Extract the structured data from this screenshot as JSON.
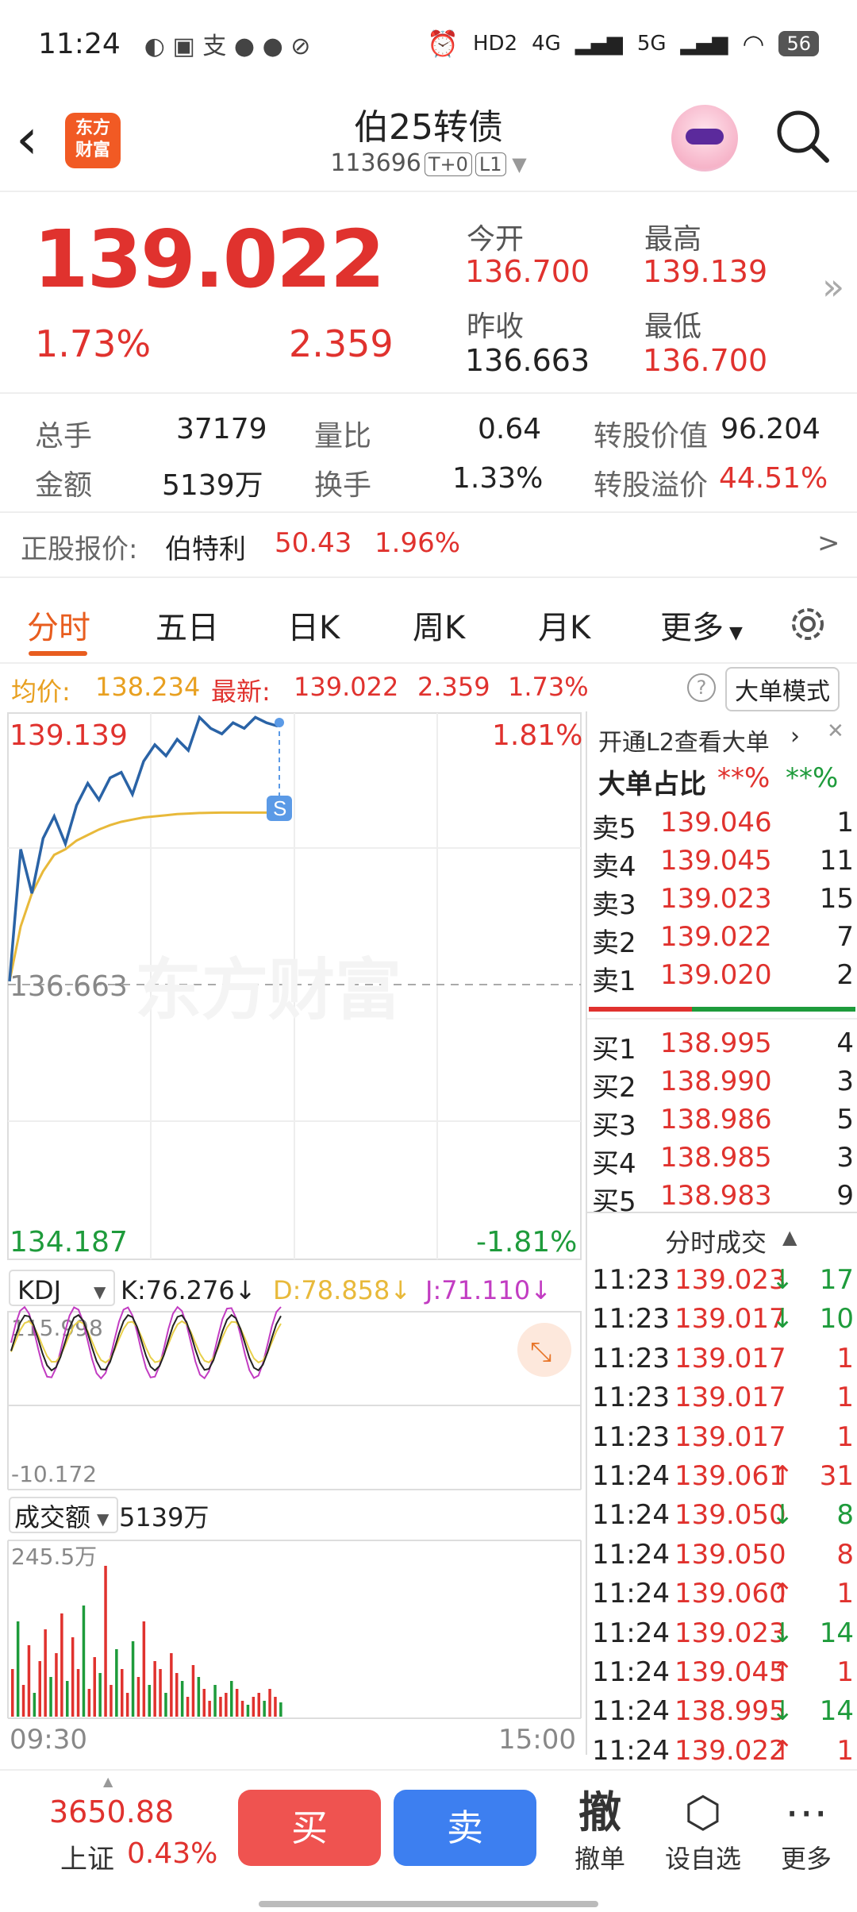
{
  "status": {
    "time": "11:24",
    "net1": "HD2",
    "net2": "4G",
    "net3": "5G",
    "battery": "56"
  },
  "header": {
    "logo_line1": "东方",
    "logo_line2": "财富",
    "title": "伯25转债",
    "code": "113696",
    "tag1": "T+0",
    "tag2": "L1"
  },
  "quote": {
    "price": "139.022",
    "pct": "1.73%",
    "change": "2.359",
    "open_label": "今开",
    "open": "136.700",
    "high_label": "最高",
    "high": "139.139",
    "prev_label": "昨收",
    "prev": "136.663",
    "low_label": "最低",
    "low": "136.700"
  },
  "stats": {
    "vol_label": "总手",
    "vol": "37179",
    "ratio_label": "量比",
    "ratio": "0.64",
    "conv_label": "转股价值",
    "conv": "96.204",
    "amt_label": "金额",
    "amt": "5139万",
    "turn_label": "换手",
    "turn": "1.33%",
    "prem_label": "转股溢价",
    "prem": "44.51%"
  },
  "stockref": {
    "label": "正股报价:",
    "name": "伯特利",
    "price": "50.43",
    "pct": "1.96%",
    "arrow": ">"
  },
  "tabs": [
    "分时",
    "五日",
    "日K",
    "周K",
    "月K",
    "更多"
  ],
  "avg": {
    "avg_label": "均价:",
    "avg": "138.234",
    "last_label": "最新:",
    "last": "139.022",
    "chg": "2.359",
    "pct": "1.73%",
    "mode": "大单模式"
  },
  "chart": {
    "top_price": "139.139",
    "top_pct": "1.81%",
    "mid_price": "136.663",
    "bot_price": "134.187",
    "bot_pct": "-1.81%",
    "watermark": "东方财富",
    "s_marker": "S",
    "kdj_label": "KDJ",
    "k": "K:76.276",
    "d": "D:78.858",
    "j": "J:71.110",
    "kdj_top": "115.998",
    "kdj_bot": "-10.172",
    "vol_label": "成交额",
    "vol_val": "5139万",
    "vol_top": "245.5万",
    "time_start": "09:30",
    "time_end": "15:00"
  },
  "chart_data": {
    "type": "line",
    "title": "",
    "ylim": [
      134.187,
      139.139
    ],
    "prev_close": 136.663,
    "series": [
      {
        "values": [
          136.7,
          137.9,
          137.5,
          138.0,
          138.2,
          137.95,
          138.3,
          138.5,
          138.35,
          138.55,
          138.6,
          138.4,
          138.7,
          138.85,
          138.75,
          138.9,
          138.8,
          139.1,
          139.0,
          138.95,
          139.05,
          139.0,
          139.1,
          139.05,
          139.02
        ]
      },
      {
        "values": [
          136.7,
          137.2,
          137.5,
          137.7,
          137.85,
          137.9,
          137.98,
          138.03,
          138.08,
          138.12,
          138.15,
          138.17,
          138.19,
          138.2,
          138.21,
          138.22,
          138.225,
          138.23,
          138.232,
          138.234,
          138.234,
          138.234,
          138.234,
          138.234,
          138.234
        ]
      }
    ]
  },
  "orderbook": {
    "l2": "开通L2查看大单",
    "big_label": "大单占比",
    "big_a": "**%",
    "big_b": "**%",
    "asks": [
      {
        "label": "卖5",
        "price": "139.046",
        "qty": "1"
      },
      {
        "label": "卖4",
        "price": "139.045",
        "qty": "11"
      },
      {
        "label": "卖3",
        "price": "139.023",
        "qty": "15"
      },
      {
        "label": "卖2",
        "price": "139.022",
        "qty": "7"
      },
      {
        "label": "卖1",
        "price": "139.020",
        "qty": "2"
      }
    ],
    "bids": [
      {
        "label": "买1",
        "price": "138.995",
        "qty": "4"
      },
      {
        "label": "买2",
        "price": "138.990",
        "qty": "3"
      },
      {
        "label": "买3",
        "price": "138.986",
        "qty": "5"
      },
      {
        "label": "买4",
        "price": "138.985",
        "qty": "3"
      },
      {
        "label": "买5",
        "price": "138.983",
        "qty": "9"
      }
    ],
    "trades_label": "分时成交",
    "trades": [
      {
        "t": "11:23",
        "p": "139.023",
        "dir": "↓",
        "q": "17"
      },
      {
        "t": "11:23",
        "p": "139.017",
        "dir": "↓",
        "q": "10"
      },
      {
        "t": "11:23",
        "p": "139.017",
        "dir": "",
        "q": "1"
      },
      {
        "t": "11:23",
        "p": "139.017",
        "dir": "",
        "q": "1"
      },
      {
        "t": "11:23",
        "p": "139.017",
        "dir": "",
        "q": "1"
      },
      {
        "t": "11:24",
        "p": "139.061",
        "dir": "↑",
        "q": "31"
      },
      {
        "t": "11:24",
        "p": "139.050",
        "dir": "↓",
        "q": "8"
      },
      {
        "t": "11:24",
        "p": "139.050",
        "dir": "",
        "q": "8"
      },
      {
        "t": "11:24",
        "p": "139.060",
        "dir": "↑",
        "q": "1"
      },
      {
        "t": "11:24",
        "p": "139.023",
        "dir": "↓",
        "q": "14"
      },
      {
        "t": "11:24",
        "p": "139.045",
        "dir": "↑",
        "q": "1"
      },
      {
        "t": "11:24",
        "p": "138.995",
        "dir": "↓",
        "q": "14"
      },
      {
        "t": "11:24",
        "p": "139.022",
        "dir": "↑",
        "q": "1"
      }
    ]
  },
  "bottom": {
    "idx": "3650.88",
    "idx_name": "上证",
    "idx_pct": "0.43%",
    "buy": "买",
    "sell": "卖",
    "cancel_icon": "撤",
    "cancel": "撤单",
    "fav": "设自选",
    "more": "更多"
  },
  "colors": {
    "red": "#e0322e",
    "green": "#1e9b3b",
    "avg": "#e8b93a",
    "line": "#2a63a6"
  }
}
